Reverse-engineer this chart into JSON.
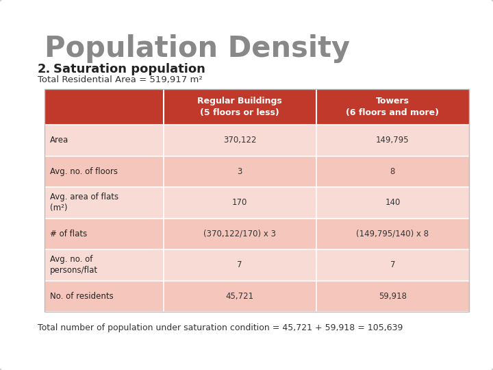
{
  "title": "Population Density",
  "subtitle_number": "2.",
  "subtitle_text": "Saturation population",
  "subtitle_area": "Total Residential Area = 519,917 m²",
  "footer": "Total number of population under saturation condition = 45,721 + 59,918 = 105,639",
  "title_color": "#888888",
  "header_bg": "#c0392b",
  "header_text_color": "#ffffff",
  "row_light_bg": "#f5c6bc",
  "row_dark_bg": "#f9dbd6",
  "col_headers": [
    "Regular Buildings\n(5 floors or less)",
    "Towers\n(6 floors and more)"
  ],
  "row_labels": [
    "Area",
    "Avg. no. of floors",
    "Avg. area of flats\n(m²)",
    "# of flats",
    "Avg. no. of\npersons/flat",
    "No. of residents"
  ],
  "col1_data": [
    "370,122",
    "3",
    "170",
    "(370,122/170) x 3",
    "7",
    "45,721"
  ],
  "col2_data": [
    "149,795",
    "8",
    "140",
    "(149,795/140) x 8",
    "7",
    "59,918"
  ],
  "bg_color": "#ffffff",
  "slide_bg": "#f0f0f0"
}
